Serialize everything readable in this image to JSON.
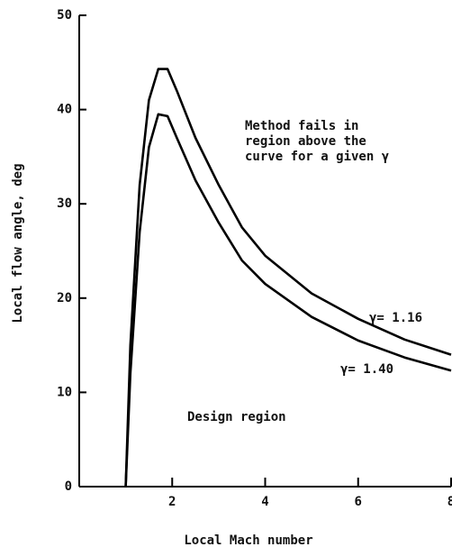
{
  "chart_data": {
    "type": "line",
    "x_label": "Local Mach number",
    "y_label": "Local flow angle, deg",
    "x": [
      1,
      1.1,
      1.3,
      1.5,
      1.7,
      1.9,
      2.1,
      2.5,
      3,
      3.5,
      4,
      5,
      6,
      7,
      8
    ],
    "series": [
      {
        "name": "γ= 1.16",
        "color": "#000000",
        "values": [
          0,
          15,
          32,
          41,
          44.3,
          44.3,
          42,
          37,
          32,
          27.5,
          24.5,
          20.5,
          17.8,
          15.6,
          14
        ]
      },
      {
        "name": "γ= 1.40",
        "color": "#000000",
        "values": [
          0,
          12,
          27,
          36,
          39.5,
          39.3,
          37,
          32.5,
          28,
          24,
          21.5,
          18,
          15.5,
          13.7,
          12.3
        ]
      }
    ],
    "xlim": [
      0,
      8
    ],
    "ylim": [
      0,
      50
    ],
    "xticks": [
      2,
      4,
      6,
      8
    ],
    "yticks": [
      0,
      10,
      20,
      30,
      40,
      50
    ],
    "annotations": [
      "Method fails in",
      "region above the",
      "curve for a given γ",
      "Design region"
    ]
  }
}
